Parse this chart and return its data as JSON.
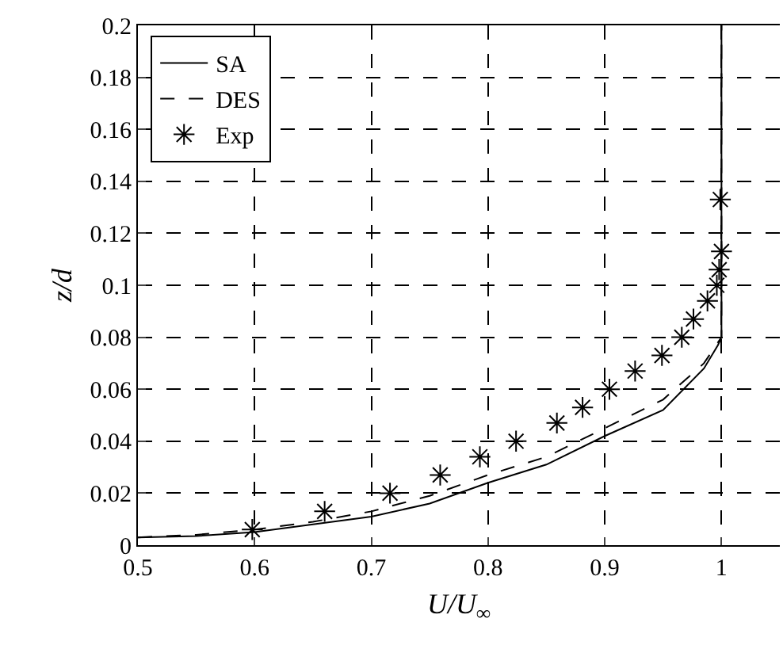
{
  "chart_data": {
    "type": "line",
    "xlabel": "U/U$_{∞}$",
    "ylabel": "z/d",
    "xlim": [
      0.5,
      1.05
    ],
    "xticks": [
      0.5,
      0.6,
      0.7,
      0.8,
      0.9,
      1
    ],
    "ylim": [
      0,
      0.2
    ],
    "yticks": [
      0,
      0.02,
      0.04,
      0.06,
      0.08,
      0.1,
      0.12,
      0.14,
      0.16,
      0.18,
      0.2
    ],
    "grid": true,
    "legend": "top left",
    "series": [
      {
        "name": "SA",
        "line_style": "solid",
        "color": "#000000",
        "x": [
          0.5,
          0.55,
          0.6,
          0.65,
          0.7,
          0.75,
          0.8,
          0.85,
          0.9,
          0.95,
          0.985,
          0.997,
          1.0,
          1.0
        ],
        "values": [
          0.003,
          0.0035,
          0.005,
          0.008,
          0.011,
          0.016,
          0.024,
          0.031,
          0.042,
          0.052,
          0.068,
          0.077,
          0.08,
          0.2
        ]
      },
      {
        "name": "DES",
        "line_style": "dashed",
        "color": "#000000",
        "x": [
          0.5,
          0.55,
          0.6,
          0.65,
          0.7,
          0.75,
          0.8,
          0.85,
          0.9,
          0.95,
          0.985,
          0.997,
          1.0,
          1.0
        ],
        "values": [
          0.003,
          0.004,
          0.006,
          0.009,
          0.013,
          0.019,
          0.027,
          0.034,
          0.045,
          0.056,
          0.07,
          0.078,
          0.08,
          0.2
        ]
      },
      {
        "name": "Exp",
        "type": "scatter",
        "marker": "cross",
        "color": "#000000",
        "x": [
          0.598,
          0.66,
          0.716,
          0.759,
          0.793,
          0.824,
          0.859,
          0.881,
          0.904,
          0.926,
          0.949,
          0.966,
          0.976,
          0.988,
          0.996,
          0.998,
          1.0,
          0.999
        ],
        "values": [
          0.006,
          0.013,
          0.02,
          0.027,
          0.034,
          0.04,
          0.047,
          0.053,
          0.06,
          0.067,
          0.073,
          0.08,
          0.087,
          0.094,
          0.1,
          0.106,
          0.113,
          0.133
        ]
      }
    ]
  }
}
